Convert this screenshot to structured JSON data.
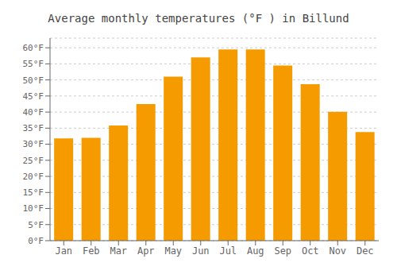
{
  "chart_data": {
    "type": "bar",
    "title": "Average monthly temperatures (°F ) in Billund",
    "categories": [
      "Jan",
      "Feb",
      "Mar",
      "Apr",
      "May",
      "Jun",
      "Jul",
      "Aug",
      "Sep",
      "Oct",
      "Nov",
      "Dec"
    ],
    "values": [
      31.8,
      32.0,
      35.8,
      42.5,
      51.0,
      57.0,
      59.5,
      59.5,
      54.5,
      48.7,
      40.1,
      33.8
    ],
    "color": "#F59B00",
    "ylim": [
      0,
      63
    ],
    "yticks": [
      {
        "value": 0,
        "label": "0°F"
      },
      {
        "value": 5,
        "label": "5°F"
      },
      {
        "value": 10,
        "label": "10°F"
      },
      {
        "value": 15,
        "label": "15°F"
      },
      {
        "value": 20,
        "label": "20°F"
      },
      {
        "value": 25,
        "label": "25°F"
      },
      {
        "value": 30,
        "label": "30°F"
      },
      {
        "value": 35,
        "label": "35°F"
      },
      {
        "value": 40,
        "label": "40°F"
      },
      {
        "value": 45,
        "label": "45°F"
      },
      {
        "value": 50,
        "label": "50°F"
      },
      {
        "value": 55,
        "label": "55°F"
      },
      {
        "value": 60,
        "label": "60°F"
      }
    ],
    "grid": true
  }
}
